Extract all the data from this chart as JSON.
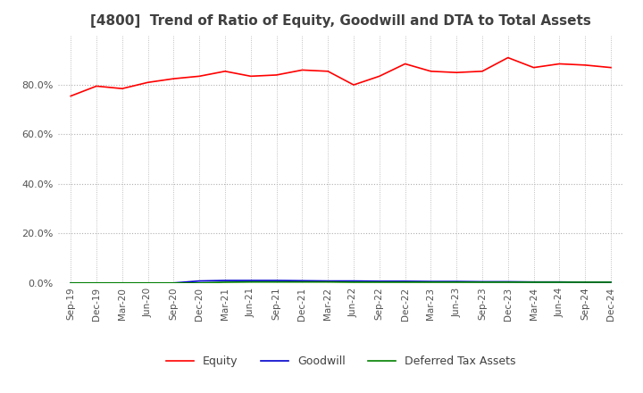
{
  "title": "[4800]  Trend of Ratio of Equity, Goodwill and DTA to Total Assets",
  "title_color": "#404040",
  "background_color": "#ffffff",
  "grid_color": "#b0b0b0",
  "x_labels": [
    "Sep-19",
    "Dec-19",
    "Mar-20",
    "Jun-20",
    "Sep-20",
    "Dec-20",
    "Mar-21",
    "Jun-21",
    "Sep-21",
    "Dec-21",
    "Mar-22",
    "Jun-22",
    "Sep-22",
    "Dec-22",
    "Mar-23",
    "Jun-23",
    "Sep-23",
    "Dec-23",
    "Mar-24",
    "Jun-24",
    "Sep-24",
    "Dec-24"
  ],
  "equity": [
    75.5,
    79.5,
    78.5,
    81.0,
    82.5,
    83.5,
    85.5,
    83.5,
    84.0,
    86.0,
    85.5,
    80.0,
    83.5,
    88.5,
    85.5,
    85.0,
    85.5,
    91.0,
    87.0,
    88.5,
    88.0,
    87.0
  ],
  "goodwill": [
    0.0,
    0.0,
    0.0,
    0.0,
    0.0,
    0.8,
    1.0,
    1.0,
    1.0,
    0.9,
    0.8,
    0.8,
    0.7,
    0.7,
    0.6,
    0.6,
    0.5,
    0.5,
    0.4,
    0.4,
    0.3,
    0.3
  ],
  "dta": [
    0.0,
    0.0,
    0.0,
    0.0,
    0.0,
    0.0,
    0.3,
    0.4,
    0.4,
    0.4,
    0.4,
    0.3,
    0.3,
    0.3,
    0.3,
    0.3,
    0.3,
    0.3,
    0.3,
    0.3,
    0.3,
    0.3
  ],
  "equity_color": "#ff0000",
  "goodwill_color": "#0000cc",
  "dta_color": "#008000",
  "ylim": [
    0,
    100
  ],
  "yticks": [
    0,
    20,
    40,
    60,
    80
  ],
  "legend_labels": [
    "Equity",
    "Goodwill",
    "Deferred Tax Assets"
  ],
  "title_fontsize": 11
}
